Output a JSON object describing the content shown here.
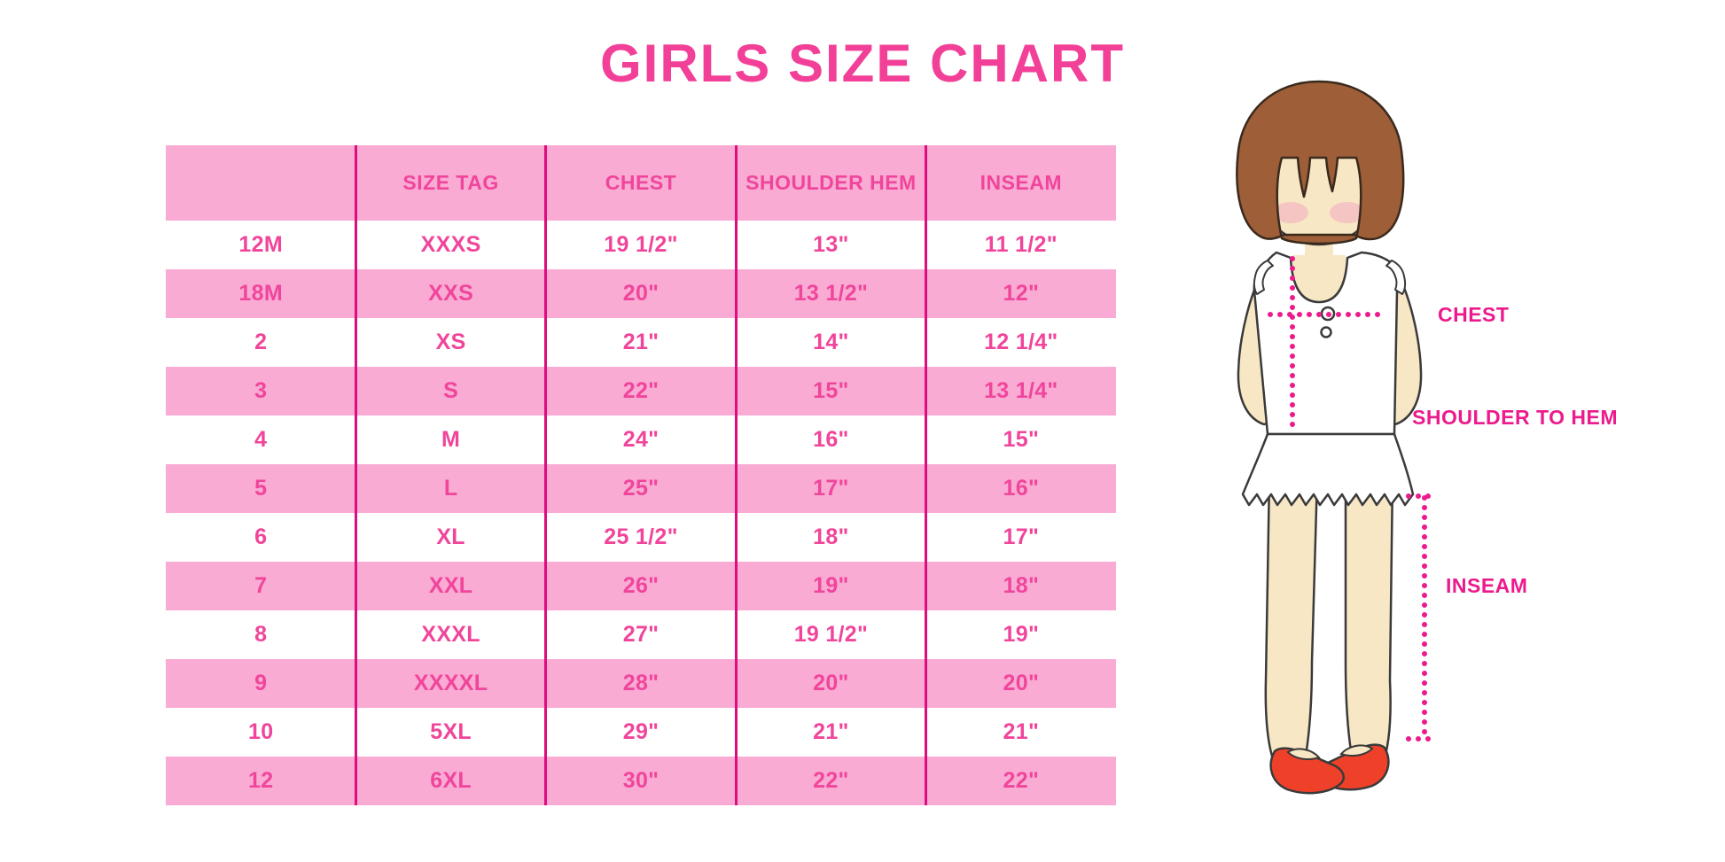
{
  "title": "GIRLS SIZE CHART",
  "chart_data": {
    "type": "table",
    "title": "GIRLS SIZE CHART",
    "columns": [
      "",
      "SIZE TAG",
      "CHEST",
      "SHOULDER HEM",
      "INSEAM"
    ],
    "rows": [
      [
        "12M",
        "XXXS",
        "19 1/2\"",
        "13\"",
        "11 1/2\""
      ],
      [
        "18M",
        "XXS",
        "20\"",
        "13 1/2\"",
        "12\""
      ],
      [
        "2",
        "XS",
        "21\"",
        "14\"",
        "12 1/4\""
      ],
      [
        "3",
        "S",
        "22\"",
        "15\"",
        "13 1/4\""
      ],
      [
        "4",
        "M",
        "24\"",
        "16\"",
        "15\""
      ],
      [
        "5",
        "L",
        "25\"",
        "17\"",
        "16\""
      ],
      [
        "6",
        "XL",
        "25 1/2\"",
        "18\"",
        "17\""
      ],
      [
        "7",
        "XXL",
        "26\"",
        "19\"",
        "18\""
      ],
      [
        "8",
        "XXXL",
        "27\"",
        "19 1/2\"",
        "19\""
      ],
      [
        "9",
        "XXXXL",
        "28\"",
        "20\"",
        "20\""
      ],
      [
        "10",
        "5XL",
        "29\"",
        "21\"",
        "21\""
      ],
      [
        "12",
        "6XL",
        "30\"",
        "22\"",
        "22\""
      ]
    ],
    "row_striping": "header pink; data rows alternate white/pink starting white",
    "grid": "vertical column separators only, no horizontal lines",
    "legend_position": "none"
  },
  "figure": {
    "chest_label": "CHEST",
    "shoulder_to_hem_label": "SHOULDER TO HEM",
    "inseam_label": "INSEAM"
  },
  "colors": {
    "title-pink": "#F23F97",
    "table-text": "#F0459B",
    "row-band": "#F9ABD4",
    "grid-line": "#DE0C7C",
    "measure": "#EC1A8C",
    "hair": "#9D5E38",
    "skin": "#F7E7C4",
    "blush": "#F2AFC1",
    "shoe": "#EF4129",
    "outline": "#3A3A3A"
  }
}
